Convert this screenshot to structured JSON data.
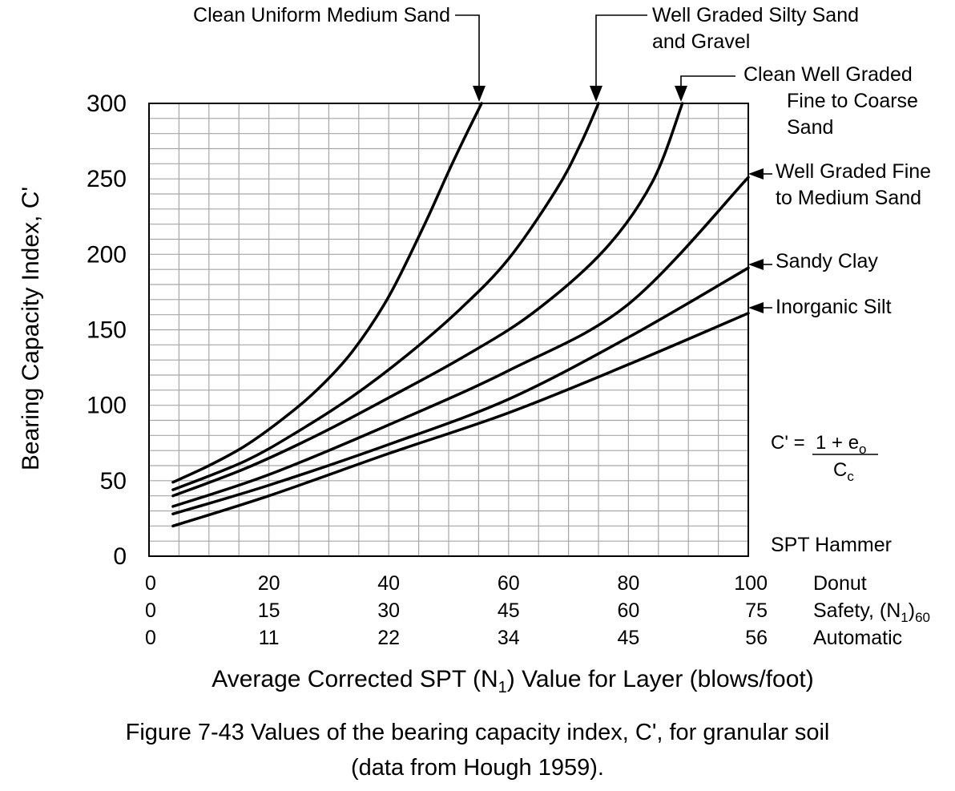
{
  "chart_data": {
    "type": "line",
    "title": "",
    "ylabel": "Bearing Capacity Index, C'",
    "xlabel_parts": [
      "Average Corrected SPT (N",
      "1",
      ") Value for Layer (blows/foot)"
    ],
    "ylim": [
      0,
      300
    ],
    "xlim": [
      0,
      100
    ],
    "grid": true,
    "y_ticks": [
      0,
      50,
      100,
      150,
      200,
      250,
      300
    ],
    "y_tick_labels": [
      "0",
      "50",
      "100",
      "150",
      "200",
      "250",
      "300"
    ],
    "hammer_header": "SPT Hammer",
    "hammer_scales": [
      {
        "name_parts": [
          "Donut",
          "",
          ""
        ],
        "ticks": [
          0,
          20,
          40,
          60,
          80,
          100
        ],
        "labels": [
          "0",
          "20",
          "40",
          "60",
          "80",
          "100"
        ]
      },
      {
        "name_parts": [
          "Safety, (N",
          "1",
          ")60"
        ],
        "ticks": [
          0,
          20,
          40,
          60,
          80,
          100
        ],
        "labels": [
          "0",
          "15",
          "30",
          "45",
          "60",
          "75"
        ]
      },
      {
        "name_parts": [
          "Automatic",
          "",
          ""
        ],
        "ticks": [
          0,
          20,
          40,
          60,
          80,
          100
        ],
        "labels": [
          "0",
          "11",
          "22",
          "34",
          "45",
          "56"
        ]
      }
    ],
    "series": [
      {
        "name": "Clean Uniform Medium Sand",
        "x": [
          4,
          10,
          16,
          22,
          28,
          34,
          40,
          46,
          50,
          53,
          55.5
        ],
        "y": [
          49,
          60,
          73,
          90,
          110,
          136,
          172,
          220,
          255,
          280,
          300
        ]
      },
      {
        "name": "Well Graded Silty Sand and Gravel",
        "x": [
          4,
          16,
          25,
          34,
          43,
          52,
          60,
          68,
          72,
          75
        ],
        "y": [
          44,
          63,
          83,
          106,
          133,
          164,
          197,
          243,
          273,
          300
        ]
      },
      {
        "name": "Clean Well Graded Fine to Coarse Sand",
        "x": [
          4,
          16,
          28,
          40,
          52,
          64,
          76,
          84,
          89
        ],
        "y": [
          40,
          58,
          80,
          105,
          131,
          161,
          203,
          248,
          300
        ]
      },
      {
        "name": "Well Graded Fine to Medium Sand",
        "x": [
          4,
          20,
          40,
          60,
          80,
          100
        ],
        "y": [
          33,
          54,
          87,
          123,
          167,
          251
        ]
      },
      {
        "name": "Sandy Clay",
        "x": [
          4,
          20,
          40,
          60,
          80,
          100
        ],
        "y": [
          28,
          47,
          74,
          104,
          145,
          191
        ]
      },
      {
        "name": "Inorganic Silt",
        "x": [
          4,
          20,
          40,
          60,
          80,
          100
        ],
        "y": [
          20,
          40,
          68,
          95,
          127,
          161
        ]
      }
    ],
    "labels": [
      {
        "lines": [
          "Clean Uniform Medium Sand"
        ]
      },
      {
        "lines": [
          "Well Graded Silty Sand",
          "and Gravel"
        ]
      },
      {
        "lines": [
          "Clean Well Graded",
          "Fine to Coarse",
          "Sand"
        ]
      },
      {
        "lines": [
          "Well Graded Fine",
          "to Medium Sand"
        ]
      },
      {
        "lines": [
          "Sandy Clay"
        ]
      },
      {
        "lines": [
          "Inorganic Silt"
        ]
      }
    ],
    "formula": {
      "lhs": "C' = ",
      "num_main": "1 + e",
      "num_sub": "o",
      "den_main": "C",
      "den_sub": "c"
    }
  },
  "caption": {
    "line1": "Figure 7-43   Values of the bearing capacity index, C', for granular soil",
    "line2": "(data from Hough 1959)."
  },
  "colors": {
    "grid": "#a6a6a6",
    "line": "#000000",
    "background": "#ffffff"
  }
}
